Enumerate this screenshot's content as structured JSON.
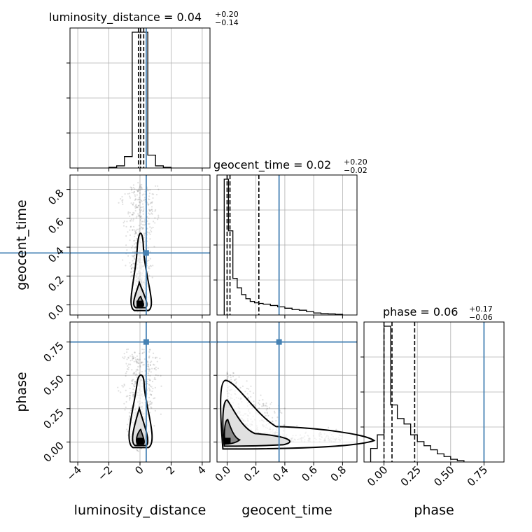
{
  "chart_data": {
    "type": "corner",
    "parameters": [
      "luminosity_distance",
      "geocent_time",
      "phase"
    ],
    "injection": {
      "luminosity_distance": 0.4,
      "geocent_time": 0.36,
      "phase": 0.75
    },
    "ranges": {
      "luminosity_distance": [
        -4.5,
        4.5
      ],
      "geocent_time": [
        -0.07,
        0.9
      ],
      "phase": [
        -0.15,
        0.9
      ]
    },
    "ticks": {
      "luminosity_distance": [
        "−4",
        "−2",
        "0",
        "2",
        "4"
      ],
      "geocent_time": [
        "0.0",
        "0.2",
        "0.4",
        "0.6",
        "0.8"
      ],
      "phase": [
        "0.00",
        "0.25",
        "0.50",
        "0.75"
      ]
    },
    "tick_values": {
      "luminosity_distance": [
        -4,
        -2,
        0,
        2,
        4
      ],
      "geocent_time": [
        0.0,
        0.2,
        0.4,
        0.6,
        0.8
      ],
      "phase": [
        0.0,
        0.25,
        0.5,
        0.75
      ]
    },
    "titles": {
      "luminosity_distance": {
        "text": "luminosity_distance = 0.04",
        "plus": "+0.20",
        "minus": "−0.14"
      },
      "geocent_time": {
        "text": "geocent_time = 0.02",
        "plus": "+0.20",
        "minus": "−0.02"
      },
      "phase": {
        "text": "phase = 0.06",
        "plus": "+0.17",
        "minus": "−0.06"
      }
    },
    "quantiles": {
      "luminosity_distance": [
        -0.1,
        0.04,
        0.24
      ],
      "geocent_time": [
        0.0,
        0.02,
        0.22
      ],
      "phase": [
        0.0,
        0.06,
        0.23
      ]
    },
    "histograms": {
      "luminosity_distance": {
        "edges": [
          -2.0,
          -1.5,
          -1.0,
          -0.5,
          0.0,
          0.5,
          1.0,
          1.5,
          2.0
        ],
        "counts": [
          0.005,
          0.015,
          0.08,
          0.95,
          0.95,
          0.09,
          0.015,
          0.005
        ]
      },
      "geocent_time": {
        "edges": [
          -0.02,
          0.01,
          0.04,
          0.07,
          0.1,
          0.13,
          0.16,
          0.19,
          0.22,
          0.25,
          0.3,
          0.35,
          0.4,
          0.45,
          0.5,
          0.55,
          0.6,
          0.65,
          0.7,
          0.75,
          0.8
        ],
        "counts": [
          1.0,
          0.62,
          0.27,
          0.2,
          0.15,
          0.12,
          0.1,
          0.09,
          0.085,
          0.08,
          0.07,
          0.06,
          0.05,
          0.04,
          0.035,
          0.025,
          0.015,
          0.01,
          0.008,
          0.005
        ]
      },
      "phase": {
        "edges": [
          -0.1,
          -0.05,
          0.0,
          0.05,
          0.1,
          0.15,
          0.2,
          0.25,
          0.3,
          0.35,
          0.4,
          0.45,
          0.5,
          0.55,
          0.6
        ],
        "counts": [
          0.1,
          0.2,
          1.0,
          0.42,
          0.32,
          0.28,
          0.2,
          0.15,
          0.12,
          0.09,
          0.06,
          0.04,
          0.02,
          0.01
        ]
      }
    },
    "grid": true,
    "injection_color": "#4682b4"
  }
}
